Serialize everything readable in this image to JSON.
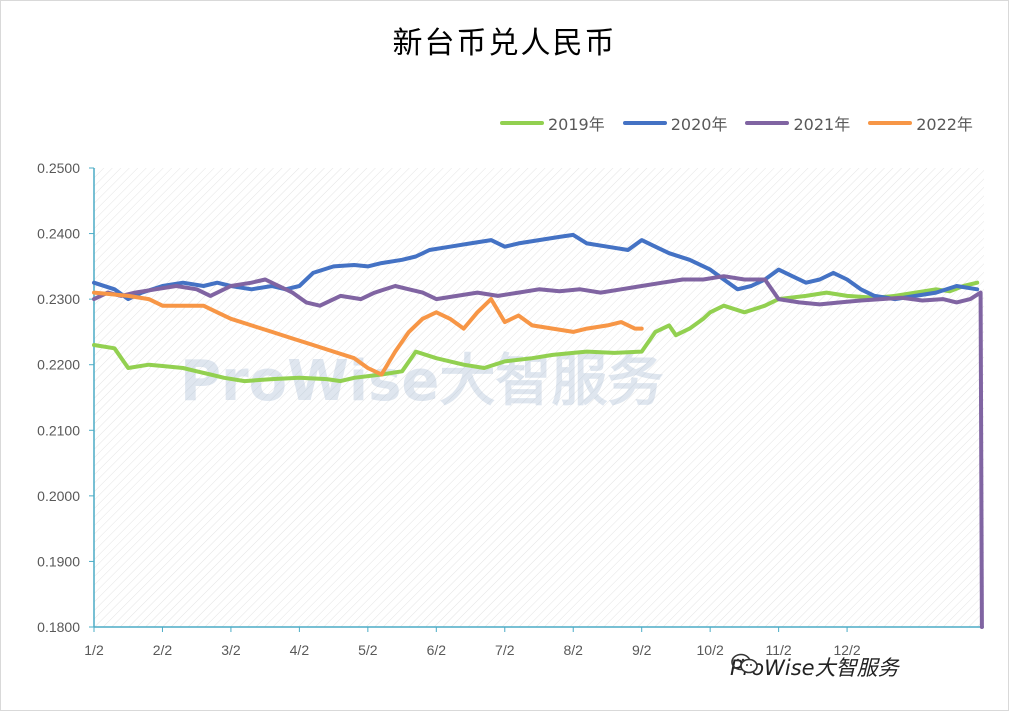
{
  "chart_data": {
    "type": "line",
    "title": "新台币兑人民币",
    "xlabel": "",
    "ylabel": "",
    "ylim": [
      0.18,
      0.25
    ],
    "yticks": [
      "0.1800",
      "0.1900",
      "0.2000",
      "0.2100",
      "0.2200",
      "0.2300",
      "0.2400",
      "0.2500"
    ],
    "xticks": [
      "1/2",
      "2/2",
      "3/2",
      "4/2",
      "5/2",
      "6/2",
      "7/2",
      "8/2",
      "9/2",
      "10/2",
      "11/2",
      "12/2"
    ],
    "legend_position": "top-right",
    "grid": false,
    "series": [
      {
        "name": "2019年",
        "color": "#92d050",
        "points": [
          [
            0,
            0.223
          ],
          [
            0.3,
            0.2225
          ],
          [
            0.5,
            0.2195
          ],
          [
            0.8,
            0.22
          ],
          [
            1.0,
            0.2198
          ],
          [
            1.3,
            0.2195
          ],
          [
            1.5,
            0.219
          ],
          [
            1.7,
            0.2185
          ],
          [
            1.9,
            0.218
          ],
          [
            2.2,
            0.2175
          ],
          [
            2.6,
            0.2178
          ],
          [
            3.0,
            0.218
          ],
          [
            3.4,
            0.2178
          ],
          [
            3.6,
            0.2175
          ],
          [
            3.8,
            0.218
          ],
          [
            4.2,
            0.2185
          ],
          [
            4.5,
            0.219
          ],
          [
            4.7,
            0.222
          ],
          [
            5.0,
            0.221
          ],
          [
            5.4,
            0.22
          ],
          [
            5.7,
            0.2195
          ],
          [
            6.0,
            0.2205
          ],
          [
            6.4,
            0.221
          ],
          [
            6.7,
            0.2215
          ],
          [
            7.0,
            0.2218
          ],
          [
            7.2,
            0.222
          ],
          [
            7.6,
            0.2218
          ],
          [
            8.0,
            0.222
          ],
          [
            8.2,
            0.225
          ],
          [
            8.4,
            0.226
          ],
          [
            8.5,
            0.2245
          ],
          [
            8.7,
            0.2255
          ],
          [
            8.9,
            0.227
          ],
          [
            9.0,
            0.228
          ],
          [
            9.2,
            0.229
          ],
          [
            9.5,
            0.228
          ],
          [
            9.8,
            0.229
          ],
          [
            10.0,
            0.23
          ],
          [
            10.4,
            0.2305
          ],
          [
            10.7,
            0.231
          ],
          [
            11.0,
            0.2305
          ],
          [
            11.4,
            0.2302
          ],
          [
            11.7,
            0.2305
          ],
          [
            12.0,
            0.231
          ],
          [
            12.3,
            0.2315
          ],
          [
            12.5,
            0.2312
          ],
          [
            12.7,
            0.232
          ],
          [
            12.9,
            0.2325
          ]
        ]
      },
      {
        "name": "2020年",
        "color": "#4472c4",
        "points": [
          [
            0,
            0.2325
          ],
          [
            0.3,
            0.2315
          ],
          [
            0.5,
            0.23
          ],
          [
            0.7,
            0.231
          ],
          [
            1.0,
            0.232
          ],
          [
            1.3,
            0.2325
          ],
          [
            1.6,
            0.232
          ],
          [
            1.8,
            0.2325
          ],
          [
            2.0,
            0.232
          ],
          [
            2.3,
            0.2315
          ],
          [
            2.6,
            0.232
          ],
          [
            2.8,
            0.2315
          ],
          [
            3.0,
            0.232
          ],
          [
            3.2,
            0.234
          ],
          [
            3.5,
            0.235
          ],
          [
            3.8,
            0.2352
          ],
          [
            4.0,
            0.235
          ],
          [
            4.2,
            0.2355
          ],
          [
            4.5,
            0.236
          ],
          [
            4.7,
            0.2365
          ],
          [
            4.9,
            0.2375
          ],
          [
            5.2,
            0.238
          ],
          [
            5.5,
            0.2385
          ],
          [
            5.8,
            0.239
          ],
          [
            6.0,
            0.238
          ],
          [
            6.2,
            0.2385
          ],
          [
            6.5,
            0.239
          ],
          [
            6.8,
            0.2395
          ],
          [
            7.0,
            0.2398
          ],
          [
            7.2,
            0.2385
          ],
          [
            7.5,
            0.238
          ],
          [
            7.8,
            0.2375
          ],
          [
            8.0,
            0.239
          ],
          [
            8.2,
            0.238
          ],
          [
            8.4,
            0.237
          ],
          [
            8.7,
            0.236
          ],
          [
            9.0,
            0.2345
          ],
          [
            9.2,
            0.233
          ],
          [
            9.4,
            0.2315
          ],
          [
            9.6,
            0.232
          ],
          [
            9.8,
            0.233
          ],
          [
            10.0,
            0.2345
          ],
          [
            10.2,
            0.2335
          ],
          [
            10.4,
            0.2325
          ],
          [
            10.6,
            0.233
          ],
          [
            10.8,
            0.234
          ],
          [
            11.0,
            0.233
          ],
          [
            11.2,
            0.2315
          ],
          [
            11.4,
            0.2305
          ],
          [
            11.7,
            0.23
          ],
          [
            12.0,
            0.2305
          ],
          [
            12.3,
            0.231
          ],
          [
            12.6,
            0.232
          ],
          [
            12.9,
            0.2315
          ]
        ]
      },
      {
        "name": "2021年",
        "color": "#8064a2",
        "points": [
          [
            0,
            0.23
          ],
          [
            0.2,
            0.231
          ],
          [
            0.4,
            0.2305
          ],
          [
            0.6,
            0.231
          ],
          [
            0.9,
            0.2315
          ],
          [
            1.2,
            0.232
          ],
          [
            1.5,
            0.2315
          ],
          [
            1.7,
            0.2305
          ],
          [
            2.0,
            0.232
          ],
          [
            2.3,
            0.2325
          ],
          [
            2.5,
            0.233
          ],
          [
            2.7,
            0.232
          ],
          [
            2.9,
            0.231
          ],
          [
            3.1,
            0.2295
          ],
          [
            3.3,
            0.229
          ],
          [
            3.6,
            0.2305
          ],
          [
            3.9,
            0.23
          ],
          [
            4.1,
            0.231
          ],
          [
            4.4,
            0.232
          ],
          [
            4.6,
            0.2315
          ],
          [
            4.8,
            0.231
          ],
          [
            5.0,
            0.23
          ],
          [
            5.3,
            0.2305
          ],
          [
            5.6,
            0.231
          ],
          [
            5.9,
            0.2305
          ],
          [
            6.2,
            0.231
          ],
          [
            6.5,
            0.2315
          ],
          [
            6.8,
            0.2312
          ],
          [
            7.1,
            0.2315
          ],
          [
            7.4,
            0.231
          ],
          [
            7.7,
            0.2315
          ],
          [
            8.0,
            0.232
          ],
          [
            8.3,
            0.2325
          ],
          [
            8.6,
            0.233
          ],
          [
            8.9,
            0.233
          ],
          [
            9.2,
            0.2335
          ],
          [
            9.5,
            0.233
          ],
          [
            9.8,
            0.233
          ],
          [
            10.0,
            0.23
          ],
          [
            10.3,
            0.2295
          ],
          [
            10.6,
            0.2292
          ],
          [
            10.9,
            0.2295
          ],
          [
            11.2,
            0.2298
          ],
          [
            11.5,
            0.23
          ],
          [
            11.8,
            0.2302
          ],
          [
            12.1,
            0.2298
          ],
          [
            12.4,
            0.23
          ],
          [
            12.6,
            0.2295
          ],
          [
            12.8,
            0.23
          ],
          [
            12.95,
            0.231
          ],
          [
            12.97,
            0.18
          ]
        ]
      },
      {
        "name": "2022年",
        "color": "#f79646",
        "points": [
          [
            0,
            0.231
          ],
          [
            0.2,
            0.2308
          ],
          [
            0.5,
            0.2305
          ],
          [
            0.8,
            0.23
          ],
          [
            1.0,
            0.229
          ],
          [
            1.3,
            0.229
          ],
          [
            1.6,
            0.229
          ],
          [
            1.8,
            0.228
          ],
          [
            2.0,
            0.227
          ],
          [
            2.3,
            0.226
          ],
          [
            2.6,
            0.225
          ],
          [
            2.9,
            0.224
          ],
          [
            3.2,
            0.223
          ],
          [
            3.5,
            0.222
          ],
          [
            3.8,
            0.221
          ],
          [
            4.0,
            0.2195
          ],
          [
            4.2,
            0.2185
          ],
          [
            4.4,
            0.222
          ],
          [
            4.6,
            0.225
          ],
          [
            4.8,
            0.227
          ],
          [
            5.0,
            0.228
          ],
          [
            5.2,
            0.227
          ],
          [
            5.4,
            0.2255
          ],
          [
            5.6,
            0.228
          ],
          [
            5.8,
            0.23
          ],
          [
            6.0,
            0.2265
          ],
          [
            6.2,
            0.2275
          ],
          [
            6.4,
            0.226
          ],
          [
            6.7,
            0.2255
          ],
          [
            7.0,
            0.225
          ],
          [
            7.2,
            0.2255
          ],
          [
            7.5,
            0.226
          ],
          [
            7.7,
            0.2265
          ],
          [
            7.9,
            0.2255
          ],
          [
            8.0,
            0.2255
          ]
        ]
      }
    ]
  },
  "watermark": "ProWise大智服务",
  "brand": {
    "text": "ProWise大智服务",
    "icon": "wechat-icon"
  }
}
